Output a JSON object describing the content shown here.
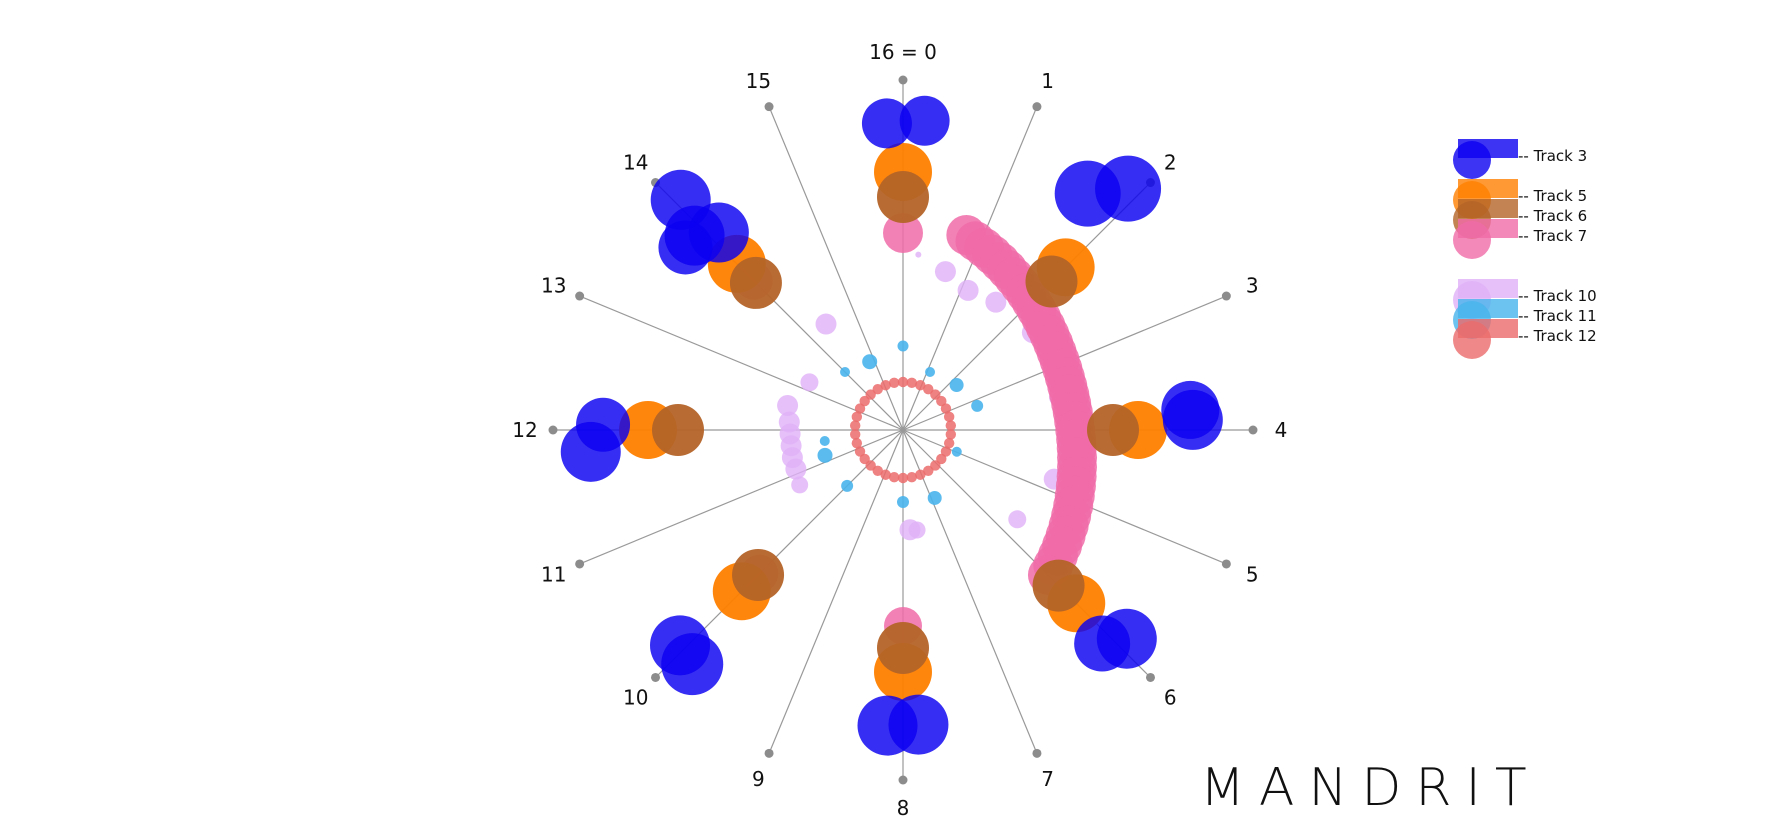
{
  "title": "MANDRIT",
  "spokes": [
    "16 = 0",
    "1",
    "2",
    "3",
    "4",
    "5",
    "6",
    "7",
    "8",
    "9",
    "10",
    "11",
    "12",
    "13",
    "14",
    "15"
  ],
  "colors": {
    "track3": "#0b00f0",
    "track5": "#ff8000",
    "track6": "#b46428",
    "track7": "#f06ba8",
    "track10": "#e0b0f7",
    "track11": "#49b4ec",
    "track12": "#eb6b6b",
    "spoke": "#999999",
    "marker": "#8c8c8c"
  },
  "legend": [
    {
      "label": "-- Track 3",
      "track": "track3"
    },
    {
      "label": "-- Track 5",
      "track": "track5"
    },
    {
      "label": "-- Track 6",
      "track": "track6"
    },
    {
      "label": "-- Track 7",
      "track": "track7"
    },
    {
      "label": "-- Track 10",
      "track": "track10"
    },
    {
      "label": "-- Track 11",
      "track": "track11"
    },
    {
      "label": "-- Track 12",
      "track": "track12"
    }
  ]
}
